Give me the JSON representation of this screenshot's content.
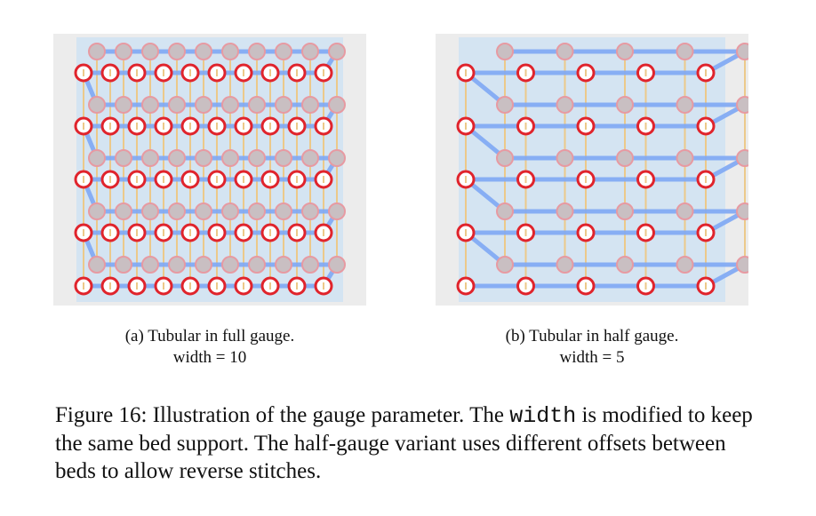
{
  "figure": {
    "subfigures": [
      {
        "caption": "(a) Tubular in full gauge.",
        "param": "width = 10",
        "gauge": "full",
        "width": 10,
        "rows": 5
      },
      {
        "caption": "(b) Tubular in half gauge.",
        "param": "width = 5",
        "gauge": "half",
        "width": 5,
        "rows": 5
      }
    ],
    "caption": {
      "prefix": "Figure 16: Illustration of the gauge parameter. The ",
      "code": "width",
      "suffix": " is modified to keep the same bed support. The half-gauge variant uses different offsets between beds to allow reverse stitches."
    }
  },
  "colors": {
    "panel_bg": "#ececec",
    "bed_bg": "#d4e4f2",
    "yarn": "#7ea7f4",
    "front_stitch": "#e0242c",
    "back_stitch_fill": "#c9bfc2",
    "back_stitch_stroke": "#e79aa2",
    "wale": "#ecc98a"
  }
}
